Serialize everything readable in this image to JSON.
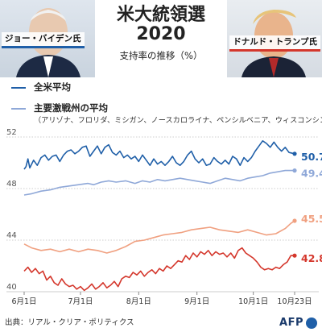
{
  "title": "米大統領選",
  "title_year": "2020",
  "subtitle": "支持率の推移（%）",
  "candidates": {
    "left": "ジョー・バイデン氏",
    "right": "ドナルド・トランプ氏"
  },
  "legend": {
    "national": "全米平均",
    "battleground": "主要激戦州の平均",
    "battleground_note": "（アリゾナ、フロリダ、ミシガン、ノースカロライナ、ペンシルベニア、ウィスコンシン）"
  },
  "source": "出典：リアル・クリア・ポリティクス",
  "logo": "AFP",
  "colors": {
    "biden_national": "#1f5fa8",
    "biden_battleground": "#8fa8d8",
    "trump_national": "#d4372c",
    "trump_battleground": "#f0a080",
    "grid": "#cccccc"
  },
  "chart_data": {
    "type": "line",
    "x_tick_labels": [
      "6月1日",
      "7月1日",
      "8月1日",
      "9月1日",
      "10月1日",
      "10月23日"
    ],
    "x_tick_dates": [
      "2020-06-01",
      "2020-07-01",
      "2020-08-01",
      "2020-09-01",
      "2020-10-01",
      "2020-10-23"
    ],
    "y_ticks": [
      40,
      44,
      48,
      52
    ],
    "ylim": [
      40,
      52
    ],
    "series": [
      {
        "name": "全米平均",
        "candidate": "バイデン",
        "final_label": "50.7",
        "points": [
          [
            "2020-06-01",
            49.5
          ],
          [
            "2020-06-02",
            49.7
          ],
          [
            "2020-06-03",
            50.3
          ],
          [
            "2020-06-04",
            49.6
          ],
          [
            "2020-06-06",
            50.2
          ],
          [
            "2020-06-08",
            49.8
          ],
          [
            "2020-06-10",
            50.4
          ],
          [
            "2020-06-12",
            50.6
          ],
          [
            "2020-06-14",
            50.2
          ],
          [
            "2020-06-16",
            50.5
          ],
          [
            "2020-06-18",
            50.6
          ],
          [
            "2020-06-20",
            50.1
          ],
          [
            "2020-06-22",
            50.6
          ],
          [
            "2020-06-24",
            50.9
          ],
          [
            "2020-06-26",
            51.0
          ],
          [
            "2020-06-28",
            50.7
          ],
          [
            "2020-06-30",
            50.9
          ],
          [
            "2020-07-02",
            51.2
          ],
          [
            "2020-07-04",
            51.3
          ],
          [
            "2020-07-06",
            50.5
          ],
          [
            "2020-07-08",
            50.9
          ],
          [
            "2020-07-10",
            51.3
          ],
          [
            "2020-07-12",
            50.7
          ],
          [
            "2020-07-14",
            51.2
          ],
          [
            "2020-07-16",
            51.4
          ],
          [
            "2020-07-18",
            50.8
          ],
          [
            "2020-07-20",
            50.6
          ],
          [
            "2020-07-22",
            50.9
          ],
          [
            "2020-07-24",
            50.4
          ],
          [
            "2020-07-26",
            50.6
          ],
          [
            "2020-07-28",
            50.3
          ],
          [
            "2020-07-30",
            50.5
          ],
          [
            "2020-08-01",
            50.1
          ],
          [
            "2020-08-03",
            50.6
          ],
          [
            "2020-08-05",
            50.2
          ],
          [
            "2020-08-07",
            49.8
          ],
          [
            "2020-08-09",
            50.3
          ],
          [
            "2020-08-11",
            49.9
          ],
          [
            "2020-08-13",
            50.1
          ],
          [
            "2020-08-15",
            49.8
          ],
          [
            "2020-08-17",
            50.1
          ],
          [
            "2020-08-19",
            50.5
          ],
          [
            "2020-08-21",
            50.0
          ],
          [
            "2020-08-23",
            49.8
          ],
          [
            "2020-08-25",
            50.1
          ],
          [
            "2020-08-27",
            50.6
          ],
          [
            "2020-08-29",
            50.9
          ],
          [
            "2020-08-31",
            50.3
          ],
          [
            "2020-09-02",
            50.0
          ],
          [
            "2020-09-04",
            50.3
          ],
          [
            "2020-09-06",
            49.8
          ],
          [
            "2020-09-08",
            49.9
          ],
          [
            "2020-09-10",
            50.4
          ],
          [
            "2020-09-12",
            50.1
          ],
          [
            "2020-09-14",
            49.9
          ],
          [
            "2020-09-16",
            50.2
          ],
          [
            "2020-09-18",
            49.9
          ],
          [
            "2020-09-20",
            50.5
          ],
          [
            "2020-09-22",
            50.3
          ],
          [
            "2020-09-24",
            49.8
          ],
          [
            "2020-09-26",
            50.4
          ],
          [
            "2020-09-28",
            50.1
          ],
          [
            "2020-09-30",
            50.4
          ],
          [
            "2020-10-02",
            50.9
          ],
          [
            "2020-10-04",
            51.3
          ],
          [
            "2020-10-06",
            51.7
          ],
          [
            "2020-10-08",
            51.5
          ],
          [
            "2020-10-10",
            51.2
          ],
          [
            "2020-10-12",
            51.6
          ],
          [
            "2020-10-14",
            51.2
          ],
          [
            "2020-10-16",
            50.9
          ],
          [
            "2020-10-18",
            51.2
          ],
          [
            "2020-10-20",
            50.8
          ],
          [
            "2020-10-23",
            50.7
          ]
        ]
      },
      {
        "name": "主要激戦州の平均",
        "candidate": "バイデン",
        "final_label": "49.4",
        "points": [
          [
            "2020-06-01",
            47.5
          ],
          [
            "2020-06-05",
            47.6
          ],
          [
            "2020-06-10",
            47.8
          ],
          [
            "2020-06-15",
            47.9
          ],
          [
            "2020-06-20",
            48.1
          ],
          [
            "2020-06-25",
            48.2
          ],
          [
            "2020-06-30",
            48.3
          ],
          [
            "2020-07-05",
            48.4
          ],
          [
            "2020-07-08",
            48.3
          ],
          [
            "2020-07-12",
            48.5
          ],
          [
            "2020-07-16",
            48.6
          ],
          [
            "2020-07-20",
            48.5
          ],
          [
            "2020-07-25",
            48.6
          ],
          [
            "2020-07-30",
            48.4
          ],
          [
            "2020-08-03",
            48.6
          ],
          [
            "2020-08-07",
            48.5
          ],
          [
            "2020-08-11",
            48.7
          ],
          [
            "2020-08-15",
            48.6
          ],
          [
            "2020-08-19",
            48.7
          ],
          [
            "2020-08-23",
            48.8
          ],
          [
            "2020-08-27",
            48.7
          ],
          [
            "2020-08-31",
            48.6
          ],
          [
            "2020-09-04",
            48.5
          ],
          [
            "2020-09-08",
            48.4
          ],
          [
            "2020-09-12",
            48.6
          ],
          [
            "2020-09-16",
            48.8
          ],
          [
            "2020-09-20",
            48.7
          ],
          [
            "2020-09-24",
            48.6
          ],
          [
            "2020-09-28",
            48.8
          ],
          [
            "2020-10-02",
            48.9
          ],
          [
            "2020-10-06",
            49.0
          ],
          [
            "2020-10-10",
            49.2
          ],
          [
            "2020-10-14",
            49.3
          ],
          [
            "2020-10-18",
            49.4
          ],
          [
            "2020-10-23",
            49.4
          ]
        ]
      },
      {
        "name": "全米平均",
        "candidate": "トランプ",
        "final_label": "42.8",
        "points": [
          [
            "2020-06-01",
            41.6
          ],
          [
            "2020-06-03",
            41.9
          ],
          [
            "2020-06-05",
            41.5
          ],
          [
            "2020-06-07",
            41.8
          ],
          [
            "2020-06-09",
            41.4
          ],
          [
            "2020-06-11",
            41.6
          ],
          [
            "2020-06-13",
            40.9
          ],
          [
            "2020-06-15",
            41.2
          ],
          [
            "2020-06-17",
            40.7
          ],
          [
            "2020-06-19",
            40.5
          ],
          [
            "2020-06-21",
            41.0
          ],
          [
            "2020-06-23",
            40.6
          ],
          [
            "2020-06-25",
            40.4
          ],
          [
            "2020-06-27",
            40.5
          ],
          [
            "2020-06-29",
            40.2
          ],
          [
            "2020-07-01",
            40.4
          ],
          [
            "2020-07-03",
            40.1
          ],
          [
            "2020-07-05",
            40.3
          ],
          [
            "2020-07-07",
            40.6
          ],
          [
            "2020-07-09",
            40.2
          ],
          [
            "2020-07-11",
            40.4
          ],
          [
            "2020-07-13",
            40.7
          ],
          [
            "2020-07-15",
            40.3
          ],
          [
            "2020-07-17",
            40.5
          ],
          [
            "2020-07-19",
            40.8
          ],
          [
            "2020-07-21",
            40.4
          ],
          [
            "2020-07-23",
            41.0
          ],
          [
            "2020-07-25",
            41.2
          ],
          [
            "2020-07-27",
            41.1
          ],
          [
            "2020-07-29",
            41.5
          ],
          [
            "2020-07-31",
            41.3
          ],
          [
            "2020-08-02",
            41.6
          ],
          [
            "2020-08-04",
            41.2
          ],
          [
            "2020-08-06",
            41.5
          ],
          [
            "2020-08-08",
            41.7
          ],
          [
            "2020-08-10",
            41.4
          ],
          [
            "2020-08-12",
            41.8
          ],
          [
            "2020-08-14",
            41.6
          ],
          [
            "2020-08-16",
            42.0
          ],
          [
            "2020-08-18",
            41.8
          ],
          [
            "2020-08-20",
            42.1
          ],
          [
            "2020-08-22",
            42.4
          ],
          [
            "2020-08-24",
            42.3
          ],
          [
            "2020-08-26",
            42.8
          ],
          [
            "2020-08-28",
            42.5
          ],
          [
            "2020-08-30",
            43.0
          ],
          [
            "2020-09-01",
            42.7
          ],
          [
            "2020-09-03",
            43.1
          ],
          [
            "2020-09-05",
            42.9
          ],
          [
            "2020-09-07",
            43.2
          ],
          [
            "2020-09-09",
            42.8
          ],
          [
            "2020-09-11",
            43.1
          ],
          [
            "2020-09-13",
            42.9
          ],
          [
            "2020-09-15",
            43.0
          ],
          [
            "2020-09-17",
            42.7
          ],
          [
            "2020-09-19",
            43.0
          ],
          [
            "2020-09-21",
            42.6
          ],
          [
            "2020-09-23",
            43.2
          ],
          [
            "2020-09-25",
            43.4
          ],
          [
            "2020-09-27",
            43.0
          ],
          [
            "2020-09-29",
            42.8
          ],
          [
            "2020-10-01",
            42.6
          ],
          [
            "2020-10-03",
            42.3
          ],
          [
            "2020-10-05",
            41.9
          ],
          [
            "2020-10-07",
            41.7
          ],
          [
            "2020-10-09",
            41.8
          ],
          [
            "2020-10-11",
            41.7
          ],
          [
            "2020-10-13",
            41.9
          ],
          [
            "2020-10-15",
            41.8
          ],
          [
            "2020-10-17",
            42.1
          ],
          [
            "2020-10-19",
            42.3
          ],
          [
            "2020-10-21",
            42.8
          ],
          [
            "2020-10-23",
            42.8
          ]
        ]
      },
      {
        "name": "主要激戦州の平均",
        "candidate": "トランプ",
        "final_label": "45.5",
        "points": [
          [
            "2020-06-01",
            43.7
          ],
          [
            "2020-06-05",
            43.4
          ],
          [
            "2020-06-10",
            43.2
          ],
          [
            "2020-06-15",
            43.3
          ],
          [
            "2020-06-20",
            43.1
          ],
          [
            "2020-06-25",
            43.3
          ],
          [
            "2020-06-30",
            43.1
          ],
          [
            "2020-07-05",
            43.3
          ],
          [
            "2020-07-10",
            43.2
          ],
          [
            "2020-07-15",
            43.0
          ],
          [
            "2020-07-20",
            43.2
          ],
          [
            "2020-07-25",
            43.5
          ],
          [
            "2020-07-30",
            43.9
          ],
          [
            "2020-08-04",
            44.0
          ],
          [
            "2020-08-09",
            44.2
          ],
          [
            "2020-08-14",
            44.4
          ],
          [
            "2020-08-19",
            44.5
          ],
          [
            "2020-08-24",
            44.6
          ],
          [
            "2020-08-29",
            44.8
          ],
          [
            "2020-09-03",
            44.9
          ],
          [
            "2020-09-08",
            45.0
          ],
          [
            "2020-09-13",
            44.8
          ],
          [
            "2020-09-18",
            44.7
          ],
          [
            "2020-09-23",
            44.6
          ],
          [
            "2020-09-28",
            44.8
          ],
          [
            "2020-10-03",
            44.6
          ],
          [
            "2020-10-08",
            44.4
          ],
          [
            "2020-10-13",
            44.5
          ],
          [
            "2020-10-18",
            44.9
          ],
          [
            "2020-10-21",
            45.3
          ],
          [
            "2020-10-23",
            45.5
          ]
        ]
      }
    ]
  }
}
